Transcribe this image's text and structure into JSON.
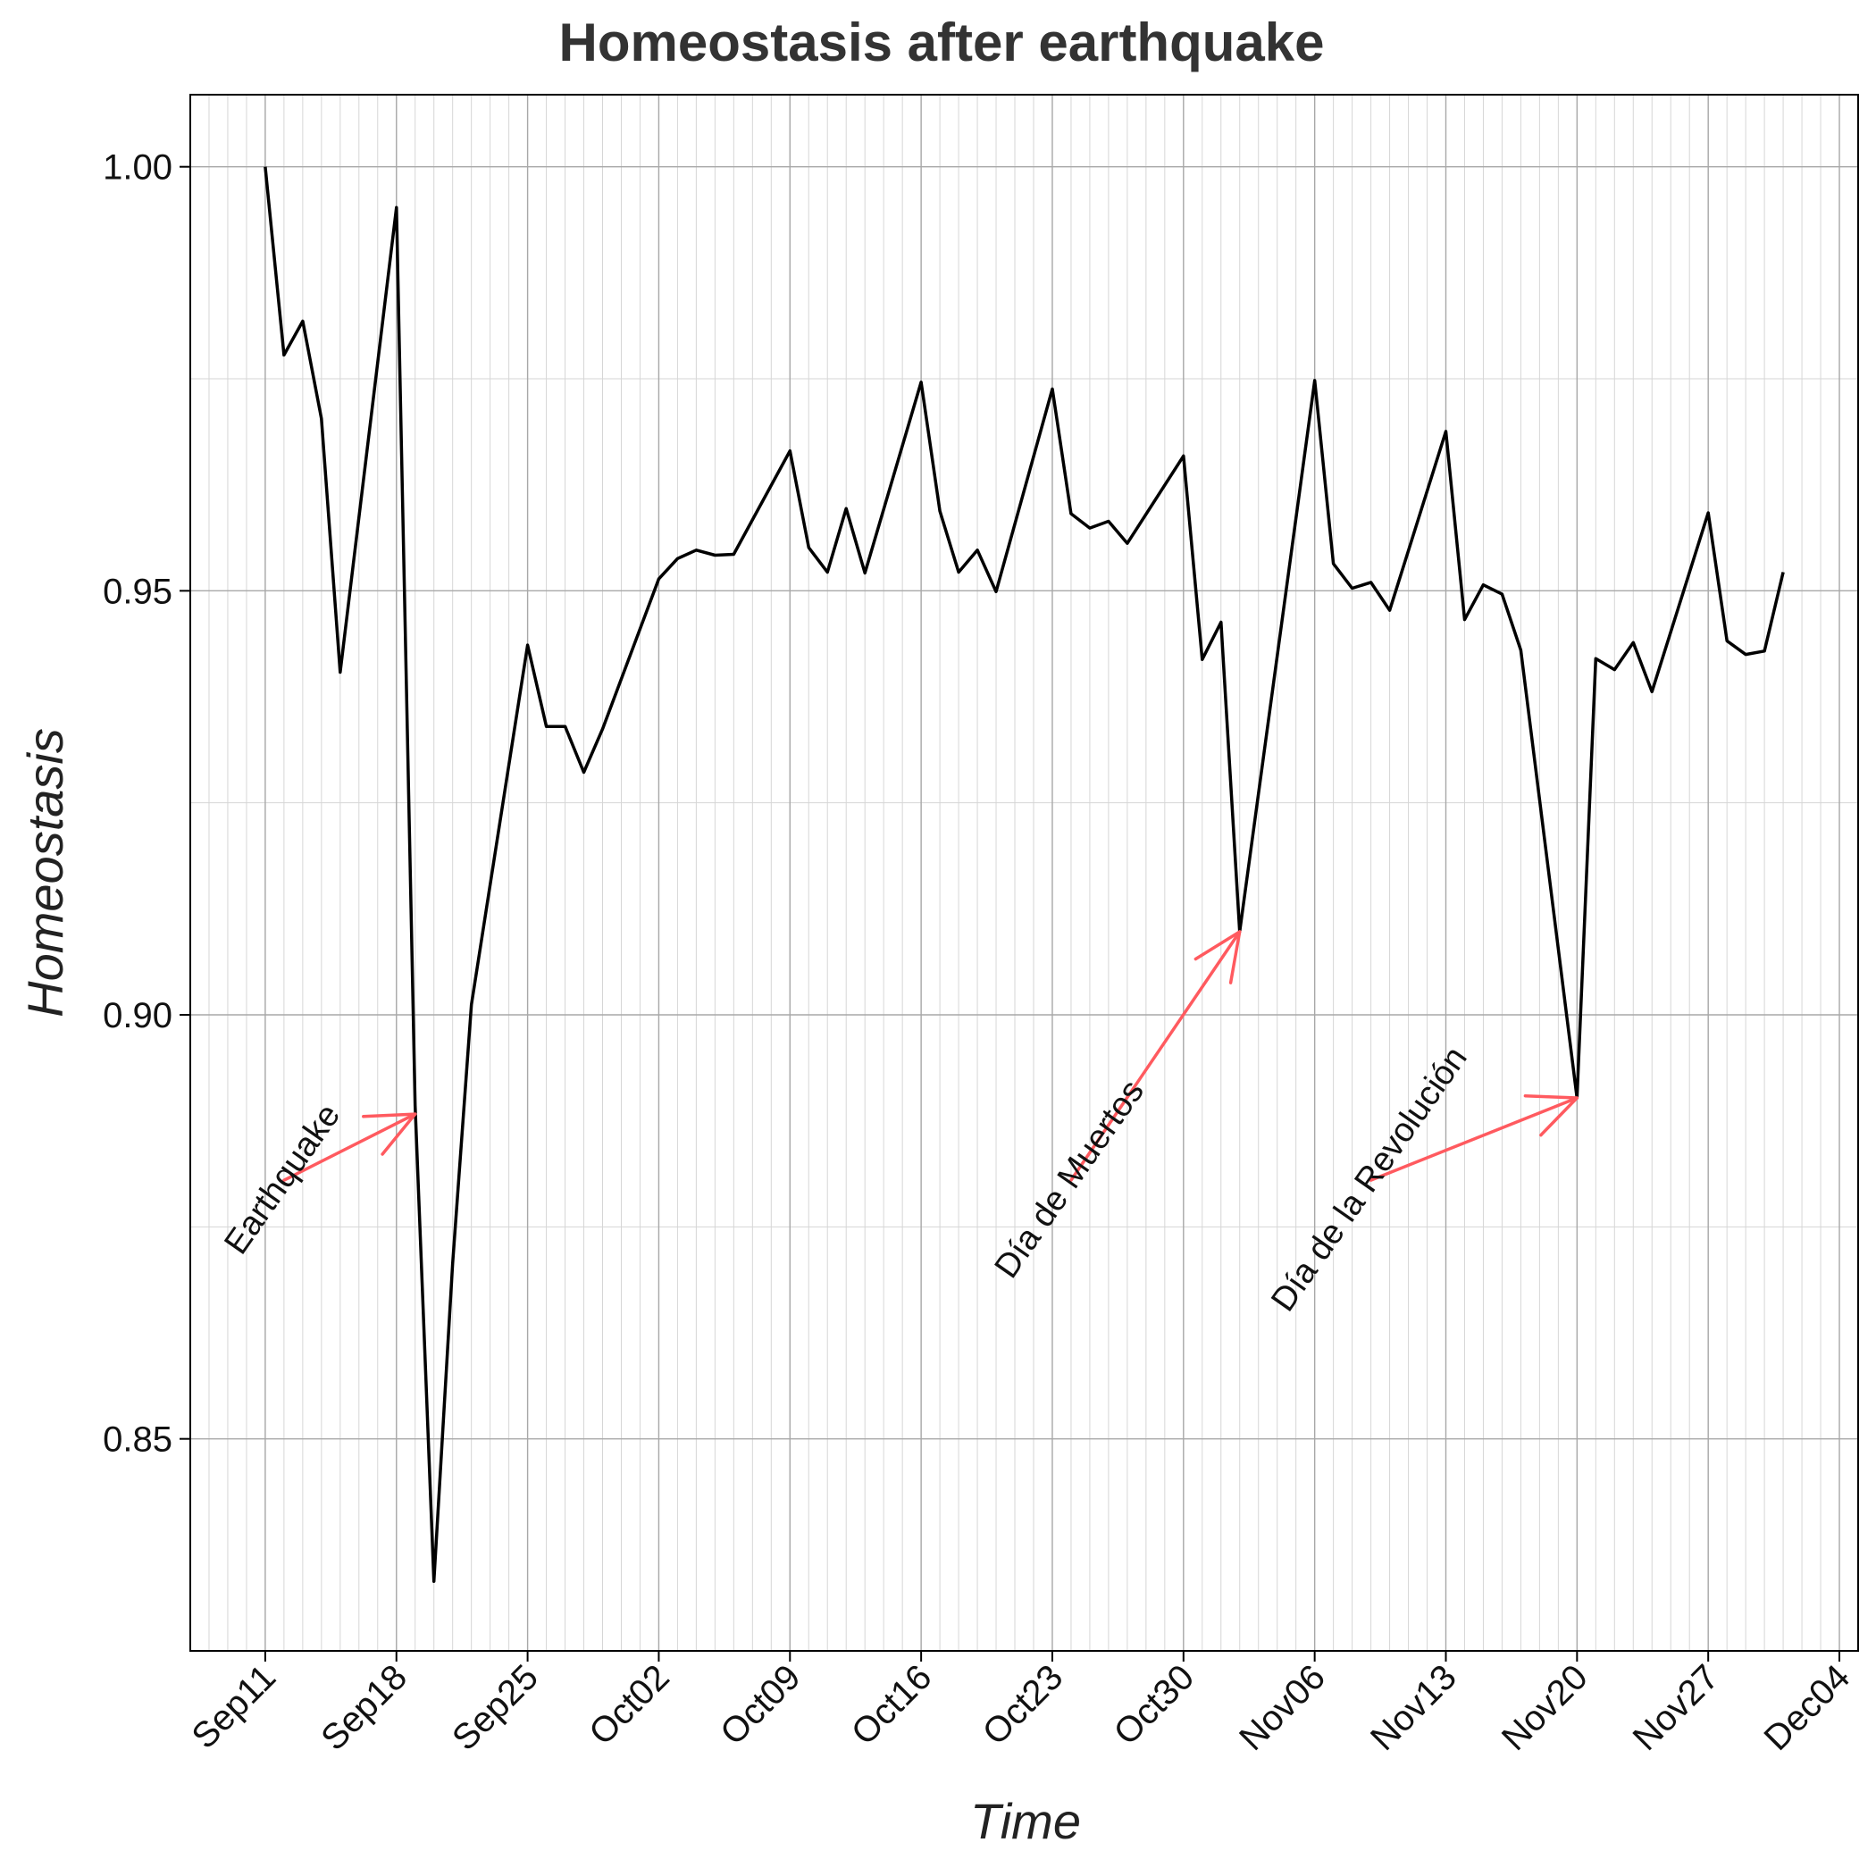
{
  "chart_data": {
    "type": "line",
    "title": "Homeostasis after earthquake",
    "xlabel": "Time",
    "ylabel": "Homeostasis",
    "ylim": [
      0.825,
      1.0085
    ],
    "xlim": [
      "2017-09-07",
      "2017-12-05"
    ],
    "grid": true,
    "line_color": "#000000",
    "annotation_color": "#ff5a5f",
    "y_ticks": [
      {
        "value": 0.85,
        "label": "0.85"
      },
      {
        "value": 0.9,
        "label": "0.90"
      },
      {
        "value": 0.95,
        "label": "0.95"
      },
      {
        "value": 1.0,
        "label": "1.00"
      }
    ],
    "x_ticks": [
      {
        "value": "2017-09-11",
        "label": "Sep11"
      },
      {
        "value": "2017-09-18",
        "label": "Sep18"
      },
      {
        "value": "2017-09-25",
        "label": "Sep25"
      },
      {
        "value": "2017-10-02",
        "label": "Oct02"
      },
      {
        "value": "2017-10-09",
        "label": "Oct09"
      },
      {
        "value": "2017-10-16",
        "label": "Oct16"
      },
      {
        "value": "2017-10-23",
        "label": "Oct23"
      },
      {
        "value": "2017-10-30",
        "label": "Oct30"
      },
      {
        "value": "2017-11-06",
        "label": "Nov06"
      },
      {
        "value": "2017-11-13",
        "label": "Nov13"
      },
      {
        "value": "2017-11-20",
        "label": "Nov20"
      },
      {
        "value": "2017-11-27",
        "label": "Nov27"
      },
      {
        "value": "2017-12-04",
        "label": "Dec04"
      }
    ],
    "series": [
      {
        "x": [
          "2017-09-11",
          "2017-09-12",
          "2017-09-13",
          "2017-09-14",
          "2017-09-15",
          "2017-09-18",
          "2017-09-19",
          "2017-09-20",
          "2017-09-21",
          "2017-09-22",
          "2017-09-25",
          "2017-09-26",
          "2017-09-27",
          "2017-09-28",
          "2017-09-29",
          "2017-10-02",
          "2017-10-03",
          "2017-10-04",
          "2017-10-05",
          "2017-10-06",
          "2017-10-09",
          "2017-10-10",
          "2017-10-11",
          "2017-10-12",
          "2017-10-13",
          "2017-10-16",
          "2017-10-17",
          "2017-10-18",
          "2017-10-19",
          "2017-10-20",
          "2017-10-23",
          "2017-10-24",
          "2017-10-25",
          "2017-10-26",
          "2017-10-27",
          "2017-10-30",
          "2017-10-31",
          "2017-11-01",
          "2017-11-02",
          "2017-11-06",
          "2017-11-07",
          "2017-11-08",
          "2017-11-09",
          "2017-11-10",
          "2017-11-13",
          "2017-11-14",
          "2017-11-15",
          "2017-11-16",
          "2017-11-17",
          "2017-11-20",
          "2017-11-21",
          "2017-11-22",
          "2017-11-23",
          "2017-11-24",
          "2017-11-27",
          "2017-11-28",
          "2017-11-29",
          "2017-11-30",
          "2017-12-01"
        ],
        "values": [
          1.0,
          0.9778,
          0.9818,
          0.9703,
          0.9404,
          0.9952,
          0.8893,
          0.8332,
          0.8707,
          0.9012,
          0.9436,
          0.934,
          0.934,
          0.9286,
          0.9337,
          0.9514,
          0.9538,
          0.9548,
          0.9542,
          0.9543,
          0.9665,
          0.9551,
          0.9522,
          0.9597,
          0.9521,
          0.9746,
          0.9594,
          0.9522,
          0.9548,
          0.9499,
          0.9738,
          0.9591,
          0.9574,
          0.9582,
          0.9556,
          0.9659,
          0.9419,
          0.9463,
          0.9098,
          0.9748,
          0.9532,
          0.9503,
          0.951,
          0.9477,
          0.9688,
          0.9466,
          0.9507,
          0.9496,
          0.943,
          0.8902,
          0.942,
          0.9407,
          0.9439,
          0.9381,
          0.9592,
          0.9441,
          0.9425,
          0.9429,
          0.9522
        ]
      }
    ],
    "annotations": [
      {
        "text": "Earthquake",
        "x": "2017-09-12",
        "y": 0.8805,
        "arrow_to_x": "2017-09-19",
        "arrow_to_y": 0.8883
      },
      {
        "text": "Día de Muertos",
        "x": "2017-10-24",
        "y": 0.8805,
        "arrow_to_x": "2017-11-02",
        "arrow_to_y": 0.9098
      },
      {
        "text": "Día de la Revolución",
        "x": "2017-11-09",
        "y": 0.8805,
        "arrow_to_x": "2017-11-20",
        "arrow_to_y": 0.8902
      }
    ]
  }
}
